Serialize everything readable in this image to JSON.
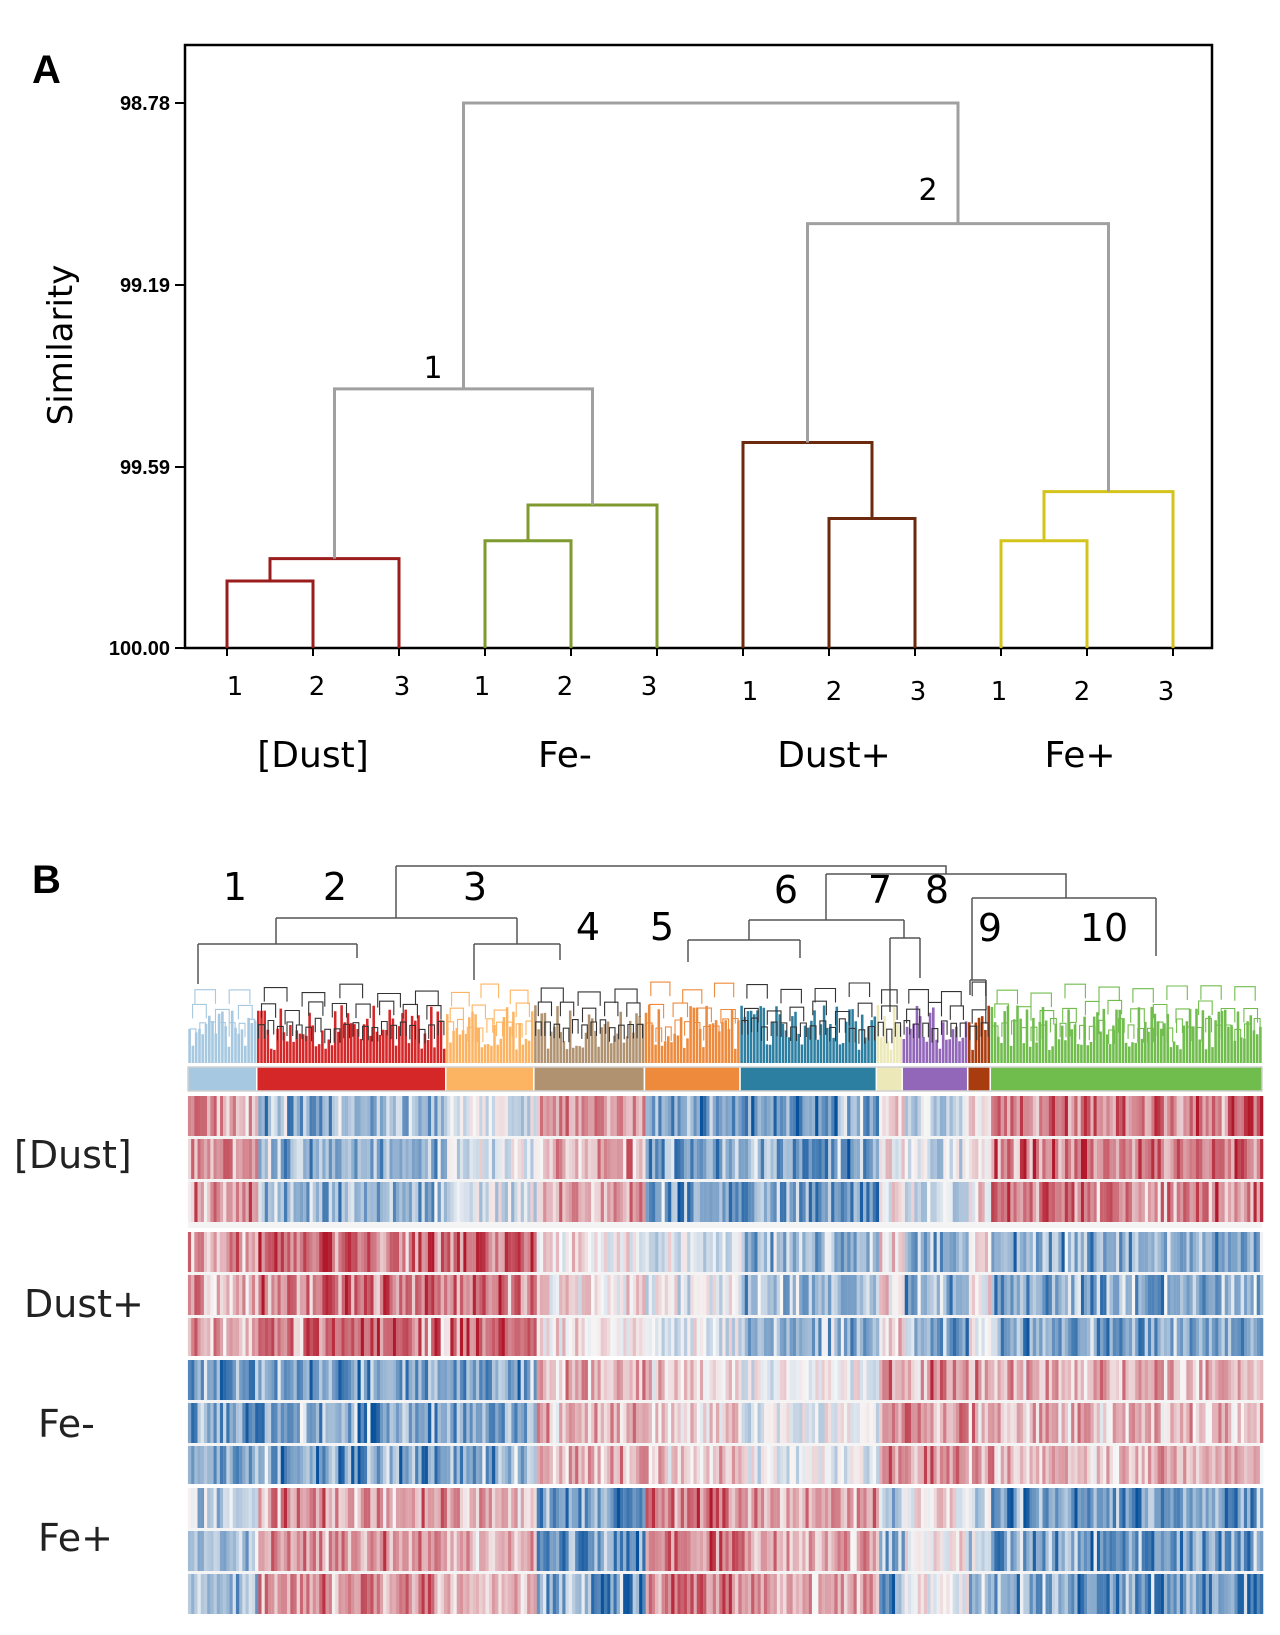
{
  "colors": {
    "root_link": "#a0a0a0",
    "dust_bracket": "#9b1c1c",
    "fe_minus": "#7f9a2e",
    "dust_plus": "#6b2a0e",
    "fe_plus": "#d4c31a",
    "heat_low": "#08519c",
    "heat_mid": "#f7f7f7",
    "heat_high": "#b2182b"
  },
  "chart_data": [
    {
      "panel": "A",
      "type": "dendrogram",
      "ylabel": "Similarity",
      "yticks": [
        "98.78",
        "99.19",
        "99.59",
        "100.00"
      ],
      "ylim": [
        98.65,
        100.0
      ],
      "leaf_reps": [
        "1",
        "2",
        "3"
      ],
      "groups": [
        {
          "name": "[Dust]",
          "color_key": "dust_bracket",
          "merges": [
            {
              "a": 1,
              "b": 2,
              "h": 99.85
            },
            {
              "a": "12",
              "b": 3,
              "h": 99.8
            }
          ]
        },
        {
          "name": "Fe-",
          "color_key": "fe_minus",
          "merges": [
            {
              "a": 1,
              "b": 2,
              "h": 99.76
            },
            {
              "a": "12",
              "b": 3,
              "h": 99.68
            }
          ]
        },
        {
          "name": "Dust+",
          "color_key": "dust_plus",
          "merges": [
            {
              "a": 2,
              "b": 3,
              "h": 99.71
            },
            {
              "a": 1,
              "b": "23",
              "h": 99.54
            }
          ]
        },
        {
          "name": "Fe+",
          "color_key": "fe_plus",
          "merges": [
            {
              "a": 1,
              "b": 2,
              "h": 99.76
            },
            {
              "a": "12",
              "b": 3,
              "h": 99.65
            }
          ]
        }
      ],
      "upper_merges": [
        {
          "label": "1",
          "left": "[Dust]",
          "right": "Fe-",
          "h": 99.42
        },
        {
          "label": "",
          "left": "Dust+",
          "right": "Fe+",
          "h": 99.05
        },
        {
          "label": "2",
          "left": "cluster-2",
          "right": "",
          "h": 99.05
        },
        {
          "label": "",
          "left": "cluster-1",
          "right": "cluster-2",
          "h": 98.78
        }
      ],
      "node_labels": [
        "1",
        "2"
      ]
    },
    {
      "panel": "B",
      "type": "heatmap",
      "clusters": [
        {
          "id": "1",
          "color": "#a6c8e0",
          "share": 0.064
        },
        {
          "id": "2",
          "color": "#d62728",
          "share": 0.176
        },
        {
          "id": "3",
          "color": "#fdb462",
          "share": 0.082
        },
        {
          "id": "4",
          "color": "#b09270",
          "share": 0.103
        },
        {
          "id": "5",
          "color": "#ee8a3c",
          "share": 0.089
        },
        {
          "id": "6",
          "color": "#2c7fa1",
          "share": 0.127
        },
        {
          "id": "7",
          "color": "#ece8b8",
          "share": 0.024
        },
        {
          "id": "8",
          "color": "#9266b8",
          "share": 0.061
        },
        {
          "id": "9",
          "color": "#a83c0f",
          "share": 0.021
        },
        {
          "id": "10",
          "color": "#70bd4d",
          "share": 0.253
        }
      ],
      "rows": [
        {
          "name": "[Dust]",
          "replicates": 3
        },
        {
          "name": "Dust+",
          "replicates": 3
        },
        {
          "name": "Fe-",
          "replicates": 3
        },
        {
          "name": "Fe+",
          "replicates": 3
        }
      ],
      "color_scale": [
        "low",
        "mid",
        "high"
      ],
      "cluster_tendency": [
        [
          0.55,
          -0.55,
          -0.15,
          0.45,
          -0.65,
          -0.7,
          0.1,
          -0.2,
          0.2,
          0.7
        ],
        [
          0.5,
          0.75,
          0.8,
          0.1,
          -0.1,
          -0.45,
          0.2,
          -0.55,
          0.1,
          -0.6
        ],
        [
          -0.6,
          -0.65,
          -0.55,
          0.35,
          0.25,
          -0.05,
          0.6,
          0.55,
          0.45,
          0.35
        ],
        [
          -0.4,
          0.55,
          0.3,
          -0.75,
          0.7,
          0.45,
          -0.6,
          0.1,
          -0.3,
          -0.7
        ]
      ]
    }
  ]
}
